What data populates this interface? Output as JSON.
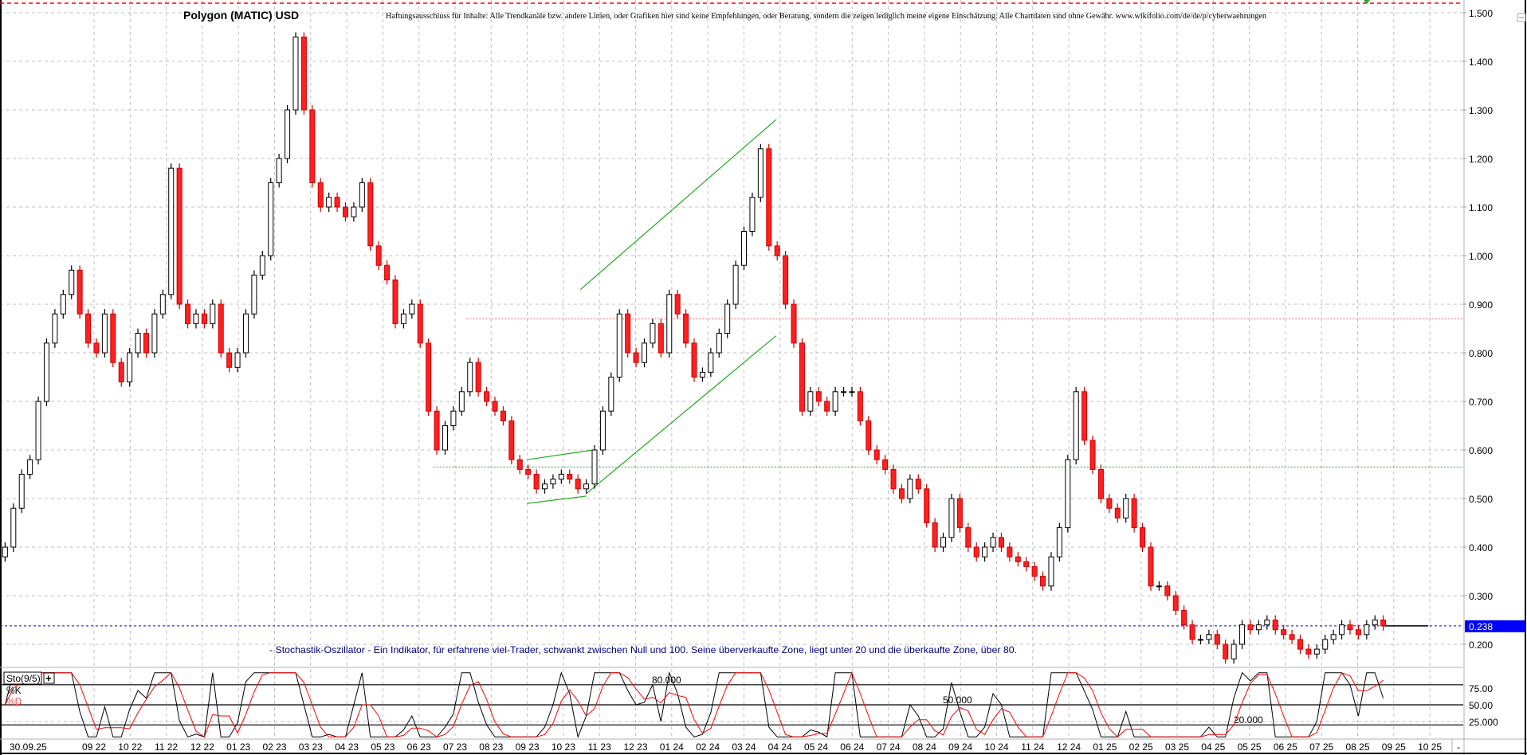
{
  "header": {
    "title": "Polygon (MATIC) USD",
    "disclaimer": "Haftungsausschluss für Inhalte: Alle Trendkanäle bzw. andere Linien, oder Grafiken hier sind keine Empfehlungen, oder Beratung, sondern die zeigen lediglich meine eigene Einschätzung. Alle Chartdaten sind ohne Gewähr.  www.wikifolio.com/de/de/p/cyberwaehrungen"
  },
  "indicator": {
    "description": "- Stochastik-Oszillator - Ein Indikator, für erfahrene viel-Trader, schwankt zwischen Null und 100. Seine überverkaufte Zone, liegt unter 20 und die überkaufte Zone, über 80.",
    "name": "Sto(9/5)",
    "add_button": "+",
    "k_label": "%K",
    "d_label": "%D",
    "level_labels": [
      "80.000",
      "50.000",
      "20.000"
    ],
    "axis_labels": [
      "75.00",
      "50.00",
      "25.000"
    ]
  },
  "colors": {
    "up_candle": "#ffffff",
    "down_candle": "#ff2020",
    "trendline": "#22aa22",
    "resistance": "#ff6060",
    "support": "#22aa22",
    "last_price": "#0000ff",
    "k_line": "#000000",
    "d_line": "#ff0000"
  },
  "chart_data": {
    "type": "candlestick",
    "title": "Polygon (MATIC) USD",
    "ylim": [
      0.15,
      1.53
    ],
    "yticks": [
      "1.500",
      "1.400",
      "1.300",
      "1.200",
      "1.100",
      "1.000",
      "0.900",
      "0.800",
      "0.700",
      "0.600",
      "0.500",
      "0.400",
      "0.300",
      "0.200"
    ],
    "xticks": [
      "09 22",
      "10 22",
      "11 22",
      "12 22",
      "01 23",
      "02 23",
      "03 23",
      "04 23",
      "05 23",
      "06 23",
      "07 23",
      "08 23",
      "09 23",
      "10 23",
      "11 23",
      "12 23",
      "01 24",
      "02 24",
      "03 24",
      "04 24",
      "05 24",
      "06 24",
      "07 24",
      "08 24",
      "09 24",
      "10 24",
      "11 24",
      "12 24",
      "01 25",
      "02 25",
      "03 25",
      "04 25",
      "05 25",
      "06 25",
      "07 25",
      "08 25",
      "09 25",
      "10 25"
    ],
    "x_first_label": "30.09.25",
    "x_last_label": "-",
    "grid": true,
    "last_price": "0.238",
    "dates": [
      "2022-06-18",
      "2022-06-25",
      "2022-07-02",
      "2022-07-09",
      "2022-07-16",
      "2022-07-23",
      "2022-07-30",
      "2022-08-06",
      "2022-08-13",
      "2022-08-20",
      "2022-08-27",
      "2022-09-03",
      "2022-09-10",
      "2022-09-17",
      "2022-09-24",
      "2022-10-01",
      "2022-10-08",
      "2022-10-15",
      "2022-10-22",
      "2022-10-29",
      "2022-11-05",
      "2022-11-12",
      "2022-11-19",
      "2022-11-26",
      "2022-12-03",
      "2022-12-10",
      "2022-12-17",
      "2022-12-24",
      "2022-12-31",
      "2023-01-07",
      "2023-01-14",
      "2023-01-21",
      "2023-01-28",
      "2023-02-04",
      "2023-02-11",
      "2023-02-18",
      "2023-02-25",
      "2023-03-04",
      "2023-03-11",
      "2023-03-18",
      "2023-03-25",
      "2023-04-01",
      "2023-04-08",
      "2023-04-15",
      "2023-04-22",
      "2023-04-29",
      "2023-05-06",
      "2023-05-13",
      "2023-05-20",
      "2023-05-27",
      "2023-06-03",
      "2023-06-10",
      "2023-06-17",
      "2023-06-24",
      "2023-07-01",
      "2023-07-08",
      "2023-07-15",
      "2023-07-22",
      "2023-07-29",
      "2023-08-05",
      "2023-08-12",
      "2023-08-19",
      "2023-08-26",
      "2023-09-02",
      "2023-09-09",
      "2023-09-16",
      "2023-09-23",
      "2023-09-30",
      "2023-10-07",
      "2023-10-14",
      "2023-10-21",
      "2023-10-28",
      "2023-11-04",
      "2023-11-11",
      "2023-11-18",
      "2023-11-25",
      "2023-12-02",
      "2023-12-09",
      "2023-12-16",
      "2023-12-23",
      "2023-12-30",
      "2024-01-06",
      "2024-01-13",
      "2024-01-20",
      "2024-01-27",
      "2024-02-03",
      "2024-02-10",
      "2024-02-17",
      "2024-02-24",
      "2024-03-02",
      "2024-03-09",
      "2024-03-16",
      "2024-03-23",
      "2024-03-30",
      "2024-04-06",
      "2024-04-13",
      "2024-04-20",
      "2024-04-27",
      "2024-05-04",
      "2024-05-11",
      "2024-05-18",
      "2024-05-25",
      "2024-06-01",
      "2024-06-08",
      "2024-06-15",
      "2024-06-22",
      "2024-06-29",
      "2024-07-06",
      "2024-07-13",
      "2024-07-20",
      "2024-07-27",
      "2024-08-03",
      "2024-08-10",
      "2024-08-17",
      "2024-08-24",
      "2024-08-31",
      "2024-09-07",
      "2024-09-14",
      "2024-09-21",
      "2024-09-28",
      "2024-10-05",
      "2024-10-12",
      "2024-10-19",
      "2024-10-26",
      "2024-11-02",
      "2024-11-09",
      "2024-11-16",
      "2024-11-23",
      "2024-11-30",
      "2024-12-07",
      "2024-12-14",
      "2024-12-21",
      "2024-12-28",
      "2025-01-04",
      "2025-01-11",
      "2025-01-18",
      "2025-01-25",
      "2025-02-01",
      "2025-02-08",
      "2025-02-15",
      "2025-02-22",
      "2025-03-01",
      "2025-03-08",
      "2025-03-15",
      "2025-03-22",
      "2025-03-29",
      "2025-04-05",
      "2025-04-12",
      "2025-04-19",
      "2025-04-26",
      "2025-05-03",
      "2025-05-10",
      "2025-05-17",
      "2025-05-24",
      "2025-05-31",
      "2025-06-07",
      "2025-06-14",
      "2025-06-21",
      "2025-06-28",
      "2025-07-05",
      "2025-07-12",
      "2025-07-19",
      "2025-07-26",
      "2025-08-02",
      "2025-08-09",
      "2025-08-16",
      "2025-08-23"
    ],
    "close": [
      0.4,
      0.48,
      0.55,
      0.58,
      0.7,
      0.82,
      0.88,
      0.92,
      0.97,
      0.88,
      0.82,
      0.8,
      0.88,
      0.78,
      0.74,
      0.8,
      0.84,
      0.8,
      0.88,
      0.92,
      1.18,
      0.9,
      0.86,
      0.88,
      0.86,
      0.9,
      0.8,
      0.77,
      0.8,
      0.88,
      0.96,
      1.0,
      1.15,
      1.2,
      1.3,
      1.45,
      1.3,
      1.15,
      1.1,
      1.12,
      1.1,
      1.08,
      1.1,
      1.15,
      1.02,
      0.98,
      0.95,
      0.86,
      0.88,
      0.9,
      0.82,
      0.68,
      0.6,
      0.65,
      0.68,
      0.72,
      0.78,
      0.72,
      0.7,
      0.68,
      0.66,
      0.58,
      0.56,
      0.55,
      0.52,
      0.53,
      0.54,
      0.55,
      0.54,
      0.52,
      0.53,
      0.6,
      0.68,
      0.75,
      0.88,
      0.8,
      0.78,
      0.82,
      0.86,
      0.8,
      0.92,
      0.88,
      0.82,
      0.75,
      0.76,
      0.8,
      0.84,
      0.9,
      0.98,
      1.05,
      1.12,
      1.22,
      1.02,
      1.0,
      0.9,
      0.82,
      0.68,
      0.72,
      0.7,
      0.68,
      0.72,
      0.72,
      0.72,
      0.66,
      0.6,
      0.58,
      0.56,
      0.52,
      0.5,
      0.54,
      0.52,
      0.45,
      0.4,
      0.42,
      0.5,
      0.44,
      0.4,
      0.38,
      0.4,
      0.42,
      0.4,
      0.38,
      0.37,
      0.36,
      0.34,
      0.32,
      0.38,
      0.44,
      0.58,
      0.72,
      0.62,
      0.56,
      0.5,
      0.48,
      0.46,
      0.5,
      0.44,
      0.4,
      0.32,
      0.32,
      0.3,
      0.27,
      0.24,
      0.21,
      0.21,
      0.22,
      0.2,
      0.17,
      0.2,
      0.24,
      0.23,
      0.24,
      0.25,
      0.23,
      0.22,
      0.21,
      0.19,
      0.18,
      0.19,
      0.21,
      0.22,
      0.24,
      0.23,
      0.22,
      0.24,
      0.25,
      0.238
    ],
    "trendlines": [
      {
        "from": [
          "2023-10-16",
          0.93
        ],
        "to": [
          "2024-03-29",
          1.28
        ]
      },
      {
        "from": [
          "2023-10-21",
          0.51
        ],
        "to": [
          "2024-03-29",
          0.835
        ]
      },
      {
        "from": [
          "2023-09-01",
          0.58
        ],
        "to": [
          "2023-10-27",
          0.6
        ]
      },
      {
        "from": [
          "2023-09-01",
          0.49
        ],
        "to": [
          "2023-10-21",
          0.505
        ]
      }
    ],
    "horizontal_levels": [
      {
        "value": 0.87,
        "from": "2023-07-12",
        "style": "resistance"
      },
      {
        "value": 0.565,
        "from": "2023-06-14",
        "style": "support"
      }
    ],
    "stochastic": {
      "k_period": 9,
      "d_period": 5,
      "levels": [
        80,
        50,
        20
      ],
      "ylim": [
        0,
        100
      ]
    }
  }
}
